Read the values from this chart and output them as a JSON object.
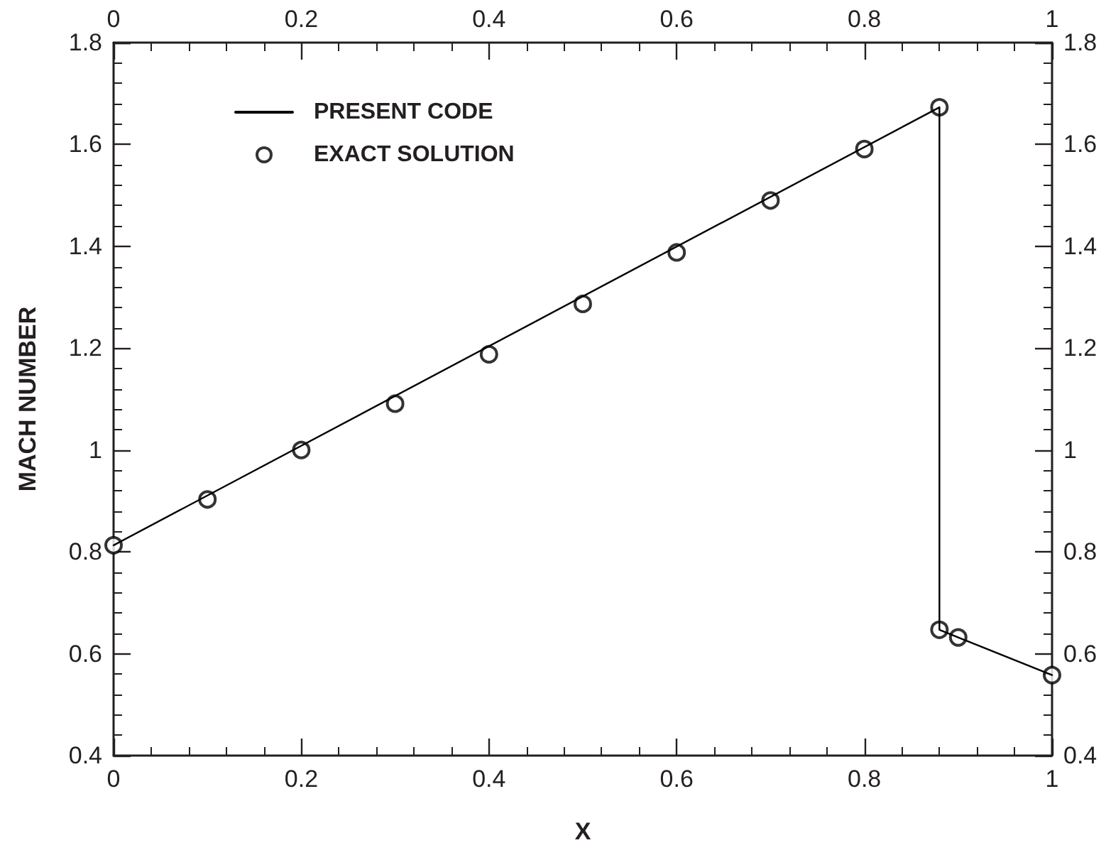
{
  "chart_data": {
    "type": "line",
    "xlabel": "X",
    "ylabel": "MACH NUMBER",
    "series": [
      {
        "name": "PRESENT CODE",
        "color": "#000000",
        "marker": "none",
        "line_style": "solid",
        "x": [
          0,
          0.88,
          0.88,
          0.9,
          1
        ],
        "values": [
          0.813,
          1.673,
          0.647,
          0.632,
          0.558
        ]
      },
      {
        "name": "EXACT SOLUTION",
        "type": "scatter",
        "color": "#000000",
        "marker": "circle",
        "x": [
          0,
          0.1,
          0.2,
          0.3,
          0.4,
          0.5,
          0.6,
          0.7,
          0.8,
          0.88,
          0.88,
          0.9,
          1
        ],
        "values": [
          0.813,
          0.903,
          1.0,
          1.091,
          1.188,
          1.287,
          1.388,
          1.49,
          1.591,
          1.673,
          0.647,
          0.632,
          0.558
        ]
      }
    ],
    "xlim": [
      0,
      1
    ],
    "xticks": [
      0,
      0.2,
      0.4,
      0.6,
      0.8,
      1
    ],
    "x2lim": [
      0,
      1
    ],
    "x2ticks": [
      0,
      0.2,
      0.4,
      0.6,
      0.8,
      1
    ],
    "ylim": [
      0.4,
      1.8
    ],
    "yticks": [
      0.4,
      0.6,
      0.8,
      1,
      1.2,
      1.4,
      1.6,
      1.8
    ],
    "y2lim": [
      0.4,
      1.8
    ],
    "y2ticks": [
      0.4,
      0.6,
      0.8,
      1,
      1.2,
      1.4,
      1.6,
      1.8
    ],
    "grid": false,
    "legend": "top left"
  }
}
